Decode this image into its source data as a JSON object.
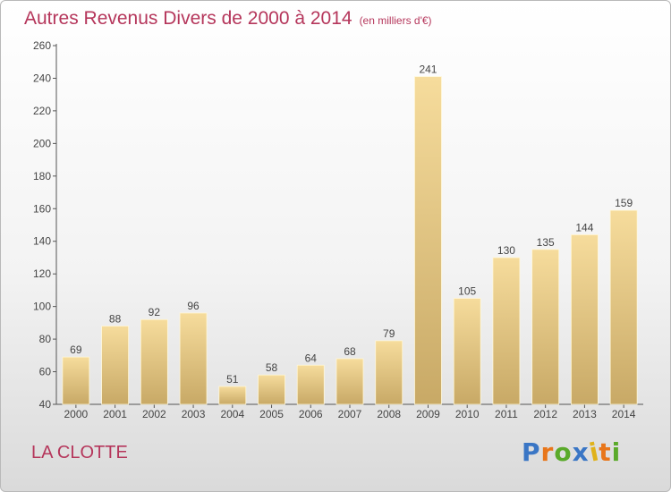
{
  "header": {
    "title": "Autres Revenus Divers de 2000 à 2014",
    "subtitle": "(en milliers d'€)"
  },
  "footer": {
    "commune": "LA CLOTTE",
    "logo": "Proxiti"
  },
  "colors": {
    "title": "#b5365b",
    "bar_light": "#f6dc9c",
    "bar_dark": "#c8a966",
    "logo": [
      "#3a76c5",
      "#e8761b",
      "#5aaa2a",
      "#3a76c5",
      "#e0b21a",
      "#e8761b",
      "#5aaa2a"
    ]
  },
  "chart_data": {
    "type": "bar",
    "categories": [
      "2000",
      "2001",
      "2002",
      "2003",
      "2004",
      "2005",
      "2006",
      "2007",
      "2008",
      "2009",
      "2010",
      "2011",
      "2012",
      "2013",
      "2014"
    ],
    "values": [
      69,
      88,
      92,
      96,
      51,
      58,
      64,
      68,
      79,
      241,
      105,
      130,
      135,
      144,
      159
    ],
    "ylim": [
      40,
      260
    ],
    "yticks": [
      40,
      60,
      80,
      100,
      120,
      140,
      160,
      180,
      200,
      220,
      240,
      260
    ],
    "grid": false,
    "data_labels": true
  }
}
